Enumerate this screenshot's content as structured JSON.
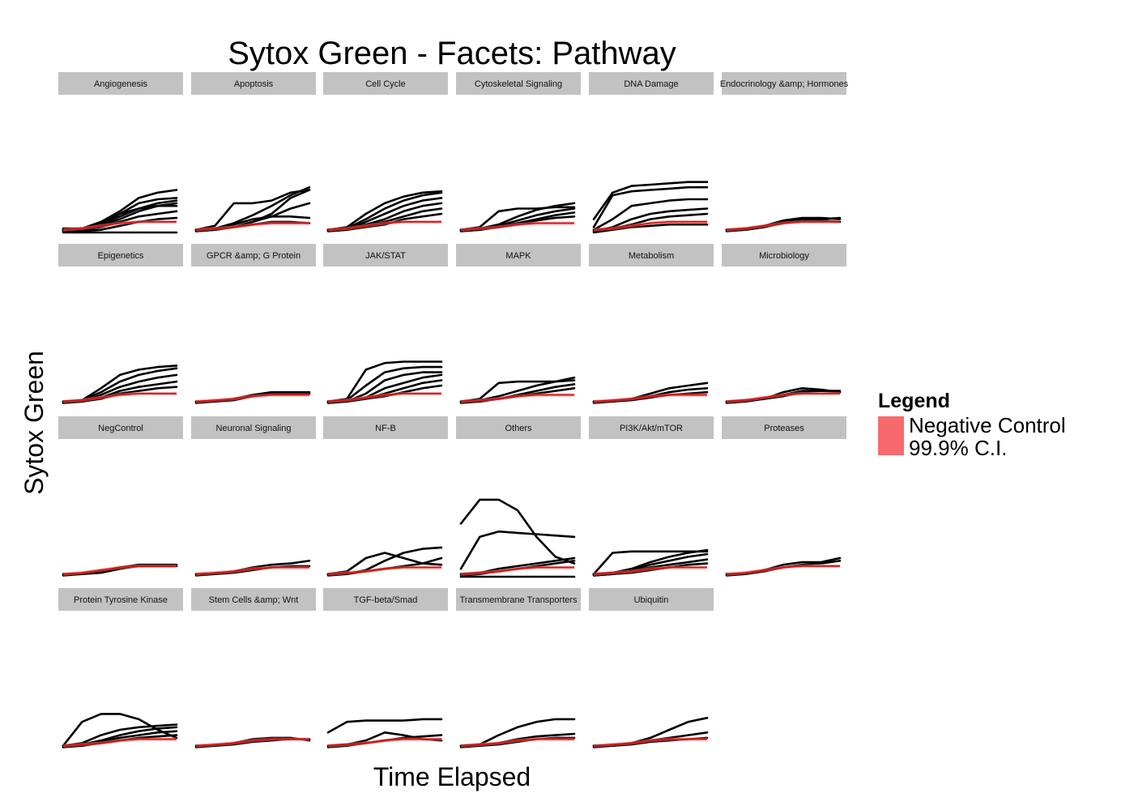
{
  "chart_data": {
    "type": "line",
    "title": "Sytox Green - Facets: Pathway",
    "xlabel": "Time Elapsed",
    "ylabel": "Sytox Green",
    "ylim": [
      0,
      1
    ],
    "grid": false,
    "legend": {
      "title": "Legend",
      "placement": "right",
      "entries": [
        {
          "label_lines": [
            "Negative Control",
            "99.9% C.I."
          ],
          "color": "#f8696b"
        }
      ]
    },
    "facets": [
      {
        "name": "Angiogenesis",
        "control": [
          0.02,
          0.03,
          0.05,
          0.07,
          0.08,
          0.08,
          0.08
        ],
        "series": [
          [
            0.02,
            0.03,
            0.08,
            0.16,
            0.26,
            0.3,
            0.32
          ],
          [
            0.02,
            0.02,
            0.06,
            0.14,
            0.22,
            0.25,
            0.26
          ],
          [
            0.01,
            0.02,
            0.05,
            0.1,
            0.16,
            0.2,
            0.22
          ],
          [
            0.03,
            0.03,
            0.06,
            0.12,
            0.18,
            0.22,
            0.24
          ],
          [
            0.02,
            0.02,
            0.04,
            0.08,
            0.12,
            0.14,
            0.16
          ],
          [
            0.01,
            0.01,
            0.02,
            0.05,
            0.08,
            0.1,
            0.11
          ],
          [
            0.0,
            0.0,
            0.0,
            0.0,
            0.0,
            0.0,
            0.0
          ],
          [
            0.02,
            0.03,
            0.07,
            0.14,
            0.18,
            0.2,
            0.2
          ]
        ]
      },
      {
        "name": "Apoptosis",
        "control": [
          0.02,
          0.03,
          0.04,
          0.06,
          0.07,
          0.07,
          0.07
        ],
        "series": [
          [
            0.02,
            0.05,
            0.22,
            0.22,
            0.24,
            0.3,
            0.32
          ],
          [
            0.02,
            0.03,
            0.07,
            0.13,
            0.2,
            0.28,
            0.34
          ],
          [
            0.01,
            0.02,
            0.04,
            0.08,
            0.12,
            0.18,
            0.22
          ],
          [
            0.02,
            0.03,
            0.06,
            0.1,
            0.12,
            0.12,
            0.11
          ],
          [
            0.01,
            0.02,
            0.04,
            0.06,
            0.08,
            0.08,
            0.07
          ],
          [
            0.02,
            0.02,
            0.04,
            0.08,
            0.14,
            0.26,
            0.32
          ]
        ]
      },
      {
        "name": "Cell Cycle",
        "control": [
          0.02,
          0.03,
          0.05,
          0.07,
          0.08,
          0.08,
          0.08
        ],
        "series": [
          [
            0.02,
            0.04,
            0.14,
            0.22,
            0.27,
            0.3,
            0.31
          ],
          [
            0.02,
            0.03,
            0.1,
            0.18,
            0.24,
            0.28,
            0.3
          ],
          [
            0.01,
            0.02,
            0.08,
            0.14,
            0.2,
            0.24,
            0.26
          ],
          [
            0.02,
            0.03,
            0.06,
            0.1,
            0.16,
            0.2,
            0.22
          ],
          [
            0.01,
            0.02,
            0.05,
            0.08,
            0.12,
            0.16,
            0.18
          ],
          [
            0.02,
            0.02,
            0.04,
            0.06,
            0.1,
            0.12,
            0.14
          ]
        ]
      },
      {
        "name": "Cytoskeletal Signaling",
        "control": [
          0.02,
          0.03,
          0.04,
          0.06,
          0.07,
          0.07,
          0.07
        ],
        "series": [
          [
            0.02,
            0.04,
            0.16,
            0.18,
            0.18,
            0.19,
            0.19
          ],
          [
            0.02,
            0.03,
            0.06,
            0.12,
            0.17,
            0.2,
            0.22
          ],
          [
            0.01,
            0.02,
            0.05,
            0.09,
            0.13,
            0.16,
            0.18
          ],
          [
            0.02,
            0.02,
            0.04,
            0.07,
            0.1,
            0.13,
            0.15
          ],
          [
            0.01,
            0.02,
            0.04,
            0.06,
            0.09,
            0.11,
            0.12
          ]
        ]
      },
      {
        "name": "DNA Damage",
        "control": [
          0.02,
          0.03,
          0.05,
          0.07,
          0.08,
          0.08,
          0.08
        ],
        "series": [
          [
            0.1,
            0.3,
            0.35,
            0.36,
            0.37,
            0.38,
            0.38
          ],
          [
            0.04,
            0.28,
            0.31,
            0.32,
            0.33,
            0.34,
            0.34
          ],
          [
            0.02,
            0.1,
            0.2,
            0.22,
            0.24,
            0.25,
            0.25
          ],
          [
            0.01,
            0.04,
            0.1,
            0.14,
            0.16,
            0.17,
            0.18
          ],
          [
            0.02,
            0.03,
            0.06,
            0.1,
            0.12,
            0.13,
            0.14
          ],
          [
            0.0,
            0.02,
            0.04,
            0.05,
            0.06,
            0.06,
            0.06
          ]
        ]
      },
      {
        "name": "Endocrinology &amp; Hormones",
        "control": [
          0.02,
          0.03,
          0.05,
          0.07,
          0.08,
          0.08,
          0.08
        ],
        "series": [
          [
            0.02,
            0.03,
            0.05,
            0.09,
            0.11,
            0.11,
            0.1
          ],
          [
            0.02,
            0.02,
            0.04,
            0.08,
            0.1,
            0.1,
            0.11
          ],
          [
            0.01,
            0.02,
            0.04,
            0.07,
            0.09,
            0.09,
            0.08
          ]
        ]
      },
      {
        "name": "Epigenetics",
        "control": [
          0.02,
          0.03,
          0.05,
          0.07,
          0.08,
          0.08,
          0.08
        ],
        "series": [
          [
            0.02,
            0.03,
            0.12,
            0.22,
            0.26,
            0.28,
            0.29
          ],
          [
            0.02,
            0.03,
            0.09,
            0.17,
            0.22,
            0.25,
            0.27
          ],
          [
            0.01,
            0.02,
            0.07,
            0.13,
            0.17,
            0.2,
            0.22
          ],
          [
            0.02,
            0.02,
            0.05,
            0.1,
            0.13,
            0.15,
            0.17
          ],
          [
            0.01,
            0.02,
            0.04,
            0.08,
            0.1,
            0.12,
            0.13
          ]
        ]
      },
      {
        "name": "GPCR &amp; G Protein",
        "control": [
          0.02,
          0.03,
          0.04,
          0.06,
          0.07,
          0.07,
          0.07
        ],
        "series": [
          [
            0.02,
            0.02,
            0.04,
            0.07,
            0.09,
            0.09,
            0.09
          ],
          [
            0.01,
            0.02,
            0.03,
            0.06,
            0.08,
            0.08,
            0.08
          ]
        ]
      },
      {
        "name": "JAK/STAT",
        "control": [
          0.02,
          0.03,
          0.05,
          0.07,
          0.08,
          0.08,
          0.08
        ],
        "series": [
          [
            0.02,
            0.04,
            0.26,
            0.31,
            0.32,
            0.32,
            0.32
          ],
          [
            0.02,
            0.03,
            0.14,
            0.24,
            0.27,
            0.28,
            0.28
          ],
          [
            0.01,
            0.02,
            0.08,
            0.18,
            0.22,
            0.24,
            0.24
          ],
          [
            0.02,
            0.02,
            0.05,
            0.12,
            0.16,
            0.2,
            0.22
          ],
          [
            0.01,
            0.02,
            0.04,
            0.08,
            0.12,
            0.16,
            0.18
          ],
          [
            0.02,
            0.02,
            0.04,
            0.06,
            0.09,
            0.12,
            0.14
          ]
        ]
      },
      {
        "name": "MAPK",
        "control": [
          0.02,
          0.03,
          0.04,
          0.06,
          0.07,
          0.07,
          0.07
        ],
        "series": [
          [
            0.02,
            0.04,
            0.16,
            0.17,
            0.17,
            0.17,
            0.18
          ],
          [
            0.02,
            0.03,
            0.06,
            0.1,
            0.14,
            0.17,
            0.2
          ],
          [
            0.01,
            0.02,
            0.04,
            0.07,
            0.1,
            0.13,
            0.15
          ],
          [
            0.02,
            0.02,
            0.04,
            0.06,
            0.08,
            0.1,
            0.12
          ]
        ]
      },
      {
        "name": "Metabolism",
        "control": [
          0.02,
          0.03,
          0.04,
          0.06,
          0.07,
          0.07,
          0.07
        ],
        "series": [
          [
            0.02,
            0.02,
            0.04,
            0.08,
            0.12,
            0.14,
            0.16
          ],
          [
            0.01,
            0.02,
            0.04,
            0.06,
            0.09,
            0.11,
            0.12
          ],
          [
            0.02,
            0.02,
            0.03,
            0.05,
            0.07,
            0.08,
            0.09
          ]
        ]
      },
      {
        "name": "Microbiology",
        "control": [
          0.02,
          0.03,
          0.05,
          0.07,
          0.08,
          0.08,
          0.08
        ],
        "series": [
          [
            0.02,
            0.02,
            0.04,
            0.09,
            0.12,
            0.11,
            0.09
          ],
          [
            0.01,
            0.02,
            0.04,
            0.07,
            0.1,
            0.1,
            0.09
          ],
          [
            0.02,
            0.03,
            0.04,
            0.06,
            0.09,
            0.1,
            0.1
          ]
        ]
      },
      {
        "name": "NegControl",
        "control": [
          0.02,
          0.03,
          0.05,
          0.07,
          0.08,
          0.08,
          0.08
        ],
        "series": [
          [
            0.02,
            0.02,
            0.04,
            0.07,
            0.09,
            0.09,
            0.09
          ],
          [
            0.01,
            0.02,
            0.03,
            0.06,
            0.08,
            0.08,
            0.08
          ]
        ]
      },
      {
        "name": "Neuronal Signaling",
        "control": [
          0.02,
          0.03,
          0.04,
          0.06,
          0.07,
          0.07,
          0.07
        ],
        "series": [
          [
            0.02,
            0.02,
            0.04,
            0.07,
            0.09,
            0.1,
            0.12
          ],
          [
            0.01,
            0.02,
            0.03,
            0.05,
            0.07,
            0.08,
            0.08
          ]
        ]
      },
      {
        "name": "NF-B",
        "control": [
          0.02,
          0.03,
          0.04,
          0.06,
          0.07,
          0.07,
          0.07
        ],
        "series": [
          [
            0.02,
            0.04,
            0.14,
            0.18,
            0.14,
            0.1,
            0.09
          ],
          [
            0.01,
            0.02,
            0.05,
            0.12,
            0.18,
            0.21,
            0.22
          ],
          [
            0.02,
            0.02,
            0.04,
            0.06,
            0.08,
            0.1,
            0.14
          ]
        ]
      },
      {
        "name": "Others",
        "control": [
          0.02,
          0.03,
          0.04,
          0.06,
          0.07,
          0.07,
          0.07
        ],
        "series": [
          [
            0.4,
            0.58,
            0.58,
            0.5,
            0.3,
            0.15,
            0.1
          ],
          [
            0.06,
            0.3,
            0.34,
            0.33,
            0.32,
            0.31,
            0.3
          ],
          [
            0.02,
            0.03,
            0.06,
            0.08,
            0.1,
            0.12,
            0.14
          ],
          [
            0.01,
            0.02,
            0.04,
            0.06,
            0.08,
            0.1,
            0.12
          ],
          [
            0.0,
            0.0,
            0.0,
            0.0,
            0.0,
            0.0,
            0.0
          ]
        ]
      },
      {
        "name": "PI3K/Akt/mTOR",
        "control": [
          0.02,
          0.03,
          0.04,
          0.06,
          0.07,
          0.07,
          0.07
        ],
        "series": [
          [
            0.02,
            0.18,
            0.19,
            0.19,
            0.19,
            0.19,
            0.19
          ],
          [
            0.02,
            0.03,
            0.06,
            0.11,
            0.15,
            0.18,
            0.2
          ],
          [
            0.01,
            0.02,
            0.05,
            0.09,
            0.12,
            0.15,
            0.17
          ],
          [
            0.02,
            0.02,
            0.04,
            0.07,
            0.09,
            0.11,
            0.13
          ],
          [
            0.01,
            0.02,
            0.03,
            0.05,
            0.07,
            0.09,
            0.1
          ]
        ]
      },
      {
        "name": "Proteases",
        "control": [
          0.02,
          0.03,
          0.05,
          0.07,
          0.08,
          0.08,
          0.08
        ],
        "series": [
          [
            0.02,
            0.02,
            0.05,
            0.09,
            0.11,
            0.11,
            0.14
          ],
          [
            0.01,
            0.02,
            0.04,
            0.07,
            0.09,
            0.1,
            0.12
          ]
        ]
      },
      {
        "name": "Protein Tyrosine Kinase",
        "control": [
          0.02,
          0.03,
          0.04,
          0.06,
          0.07,
          0.07,
          0.07
        ],
        "series": [
          [
            0.02,
            0.2,
            0.26,
            0.26,
            0.22,
            0.14,
            0.08
          ],
          [
            0.02,
            0.04,
            0.1,
            0.14,
            0.16,
            0.17,
            0.18
          ],
          [
            0.01,
            0.03,
            0.06,
            0.1,
            0.13,
            0.15,
            0.16
          ],
          [
            0.02,
            0.02,
            0.05,
            0.08,
            0.1,
            0.12,
            0.13
          ],
          [
            0.01,
            0.02,
            0.04,
            0.06,
            0.08,
            0.09,
            0.1
          ]
        ]
      },
      {
        "name": "Stem Cells &amp;  Wnt",
        "control": [
          0.02,
          0.03,
          0.04,
          0.06,
          0.07,
          0.07,
          0.07
        ],
        "series": [
          [
            0.02,
            0.02,
            0.04,
            0.07,
            0.08,
            0.08,
            0.06
          ],
          [
            0.01,
            0.02,
            0.03,
            0.05,
            0.06,
            0.07,
            0.07
          ]
        ]
      },
      {
        "name": "TGF-beta/Smad",
        "control": [
          0.02,
          0.03,
          0.04,
          0.06,
          0.07,
          0.07,
          0.07
        ],
        "series": [
          [
            0.12,
            0.2,
            0.21,
            0.21,
            0.21,
            0.22,
            0.22
          ],
          [
            0.02,
            0.03,
            0.06,
            0.12,
            0.1,
            0.07,
            0.06
          ],
          [
            0.01,
            0.02,
            0.04,
            0.06,
            0.08,
            0.09,
            0.1
          ]
        ]
      },
      {
        "name": "Transmembrane Transporters",
        "control": [
          0.02,
          0.03,
          0.04,
          0.06,
          0.07,
          0.07,
          0.07
        ],
        "series": [
          [
            0.02,
            0.03,
            0.1,
            0.16,
            0.2,
            0.22,
            0.22
          ],
          [
            0.02,
            0.02,
            0.04,
            0.07,
            0.09,
            0.1,
            0.11
          ],
          [
            0.01,
            0.02,
            0.03,
            0.05,
            0.07,
            0.08,
            0.08
          ]
        ]
      },
      {
        "name": "Ubiquitin",
        "control": [
          0.02,
          0.03,
          0.04,
          0.06,
          0.07,
          0.07,
          0.07
        ],
        "series": [
          [
            0.02,
            0.02,
            0.04,
            0.08,
            0.14,
            0.2,
            0.23
          ],
          [
            0.01,
            0.02,
            0.04,
            0.06,
            0.08,
            0.1,
            0.12
          ],
          [
            0.02,
            0.02,
            0.03,
            0.05,
            0.06,
            0.07,
            0.08
          ]
        ]
      }
    ]
  }
}
